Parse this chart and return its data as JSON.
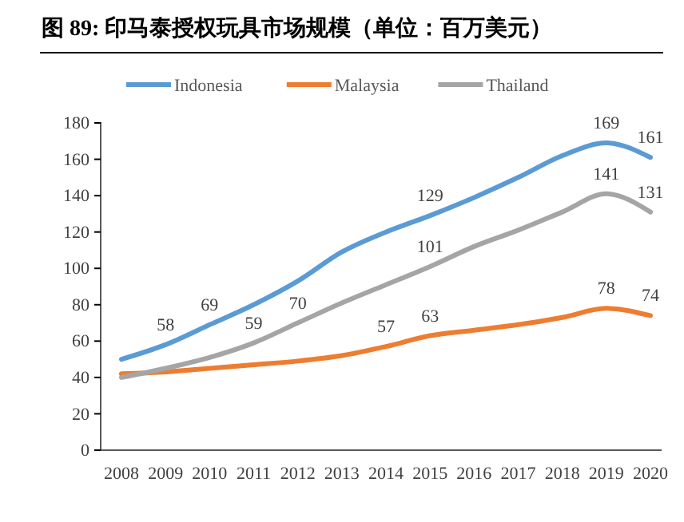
{
  "chart_data": {
    "type": "line",
    "title": "图 89: 印马泰授权玩具市场规模（单位：百万美元）",
    "categories": [
      "2008",
      "2009",
      "2010",
      "2011",
      "2012",
      "2013",
      "2014",
      "2015",
      "2016",
      "2017",
      "2018",
      "2019",
      "2020"
    ],
    "series": [
      {
        "name": "Indonesia",
        "color": "#5b9bd5",
        "values": [
          50,
          58,
          69,
          80,
          93,
          109,
          120,
          129,
          139,
          150,
          162,
          169,
          161
        ],
        "value_labels": [
          null,
          "58",
          "69",
          null,
          null,
          null,
          null,
          "129",
          null,
          null,
          null,
          "169",
          "161"
        ]
      },
      {
        "name": "Malaysia",
        "color": "#ed7d31",
        "values": [
          42,
          43,
          45,
          47,
          49,
          52,
          57,
          63,
          66,
          69,
          73,
          78,
          74
        ],
        "value_labels": [
          null,
          null,
          null,
          null,
          null,
          null,
          "57",
          "63",
          null,
          null,
          null,
          "78",
          "74"
        ]
      },
      {
        "name": "Thailand",
        "color": "#a5a5a5",
        "values": [
          40,
          45,
          51,
          59,
          70,
          81,
          91,
          101,
          112,
          121,
          131,
          141,
          131
        ],
        "value_labels": [
          null,
          null,
          null,
          "59",
          "70",
          null,
          null,
          "101",
          null,
          null,
          null,
          "141",
          "131"
        ]
      }
    ],
    "ylim": [
      0,
      180
    ],
    "yticks": [
      0,
      20,
      40,
      60,
      80,
      100,
      120,
      140,
      160,
      180
    ],
    "grid": false,
    "legend": "top",
    "marker": "none",
    "line_style": "solid"
  }
}
